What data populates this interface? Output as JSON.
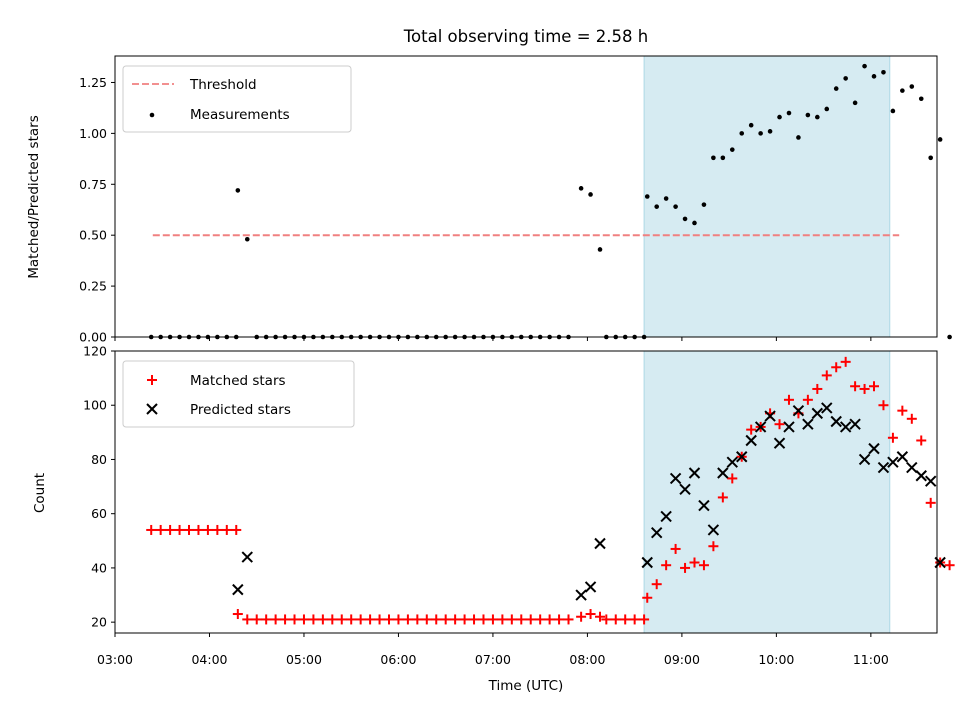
{
  "chart_data": [
    {
      "type": "scatter",
      "title": "Total observing time = 2.58 h",
      "ylabel": "Matched/Predicted stars",
      "ylim": [
        0,
        1.38
      ],
      "yticks": [
        "0.00",
        "0.25",
        "0.50",
        "0.75",
        "1.00",
        "1.25"
      ],
      "ytick_values": [
        0,
        0.25,
        0.5,
        0.75,
        1.0,
        1.25
      ],
      "threshold": {
        "label": "Threshold",
        "value": 0.5,
        "color": "#f08080",
        "x_range": [
          "03:24",
          "11:18"
        ]
      },
      "shaded_span": {
        "from": "08:36",
        "to": "11:12",
        "color": "#add8e6"
      },
      "legend_position": "upper-left",
      "series": [
        {
          "name": "Measurements",
          "color": "#000000",
          "points": [
            [
              "03:23",
              0
            ],
            [
              "03:29",
              0
            ],
            [
              "03:35",
              0
            ],
            [
              "03:41",
              0
            ],
            [
              "03:47",
              0
            ],
            [
              "03:53",
              0
            ],
            [
              "03:59",
              0
            ],
            [
              "04:05",
              0
            ],
            [
              "04:11",
              0
            ],
            [
              "04:17",
              0
            ],
            [
              "04:18",
              0.72
            ],
            [
              "04:24",
              0.48
            ],
            [
              "04:30",
              0
            ],
            [
              "04:36",
              0
            ],
            [
              "04:42",
              0
            ],
            [
              "04:48",
              0
            ],
            [
              "04:54",
              0
            ],
            [
              "05:00",
              0
            ],
            [
              "05:06",
              0
            ],
            [
              "05:12",
              0
            ],
            [
              "05:18",
              0
            ],
            [
              "05:24",
              0
            ],
            [
              "05:30",
              0
            ],
            [
              "05:36",
              0
            ],
            [
              "05:42",
              0
            ],
            [
              "05:48",
              0
            ],
            [
              "05:54",
              0
            ],
            [
              "06:00",
              0
            ],
            [
              "06:06",
              0
            ],
            [
              "06:12",
              0
            ],
            [
              "06:18",
              0
            ],
            [
              "06:24",
              0
            ],
            [
              "06:30",
              0
            ],
            [
              "06:36",
              0
            ],
            [
              "06:42",
              0
            ],
            [
              "06:48",
              0
            ],
            [
              "06:54",
              0
            ],
            [
              "07:00",
              0
            ],
            [
              "07:06",
              0
            ],
            [
              "07:12",
              0
            ],
            [
              "07:18",
              0
            ],
            [
              "07:24",
              0
            ],
            [
              "07:30",
              0
            ],
            [
              "07:36",
              0
            ],
            [
              "07:42",
              0
            ],
            [
              "07:48",
              0
            ],
            [
              "07:56",
              0.73
            ],
            [
              "08:02",
              0.7
            ],
            [
              "08:08",
              0.43
            ],
            [
              "08:12",
              0
            ],
            [
              "08:18",
              0
            ],
            [
              "08:24",
              0
            ],
            [
              "08:30",
              0
            ],
            [
              "08:36",
              0
            ],
            [
              "08:38",
              0.69
            ],
            [
              "08:44",
              0.64
            ],
            [
              "08:50",
              0.68
            ],
            [
              "08:56",
              0.64
            ],
            [
              "09:02",
              0.58
            ],
            [
              "09:08",
              0.56
            ],
            [
              "09:14",
              0.65
            ],
            [
              "09:20",
              0.88
            ],
            [
              "09:26",
              0.88
            ],
            [
              "09:32",
              0.92
            ],
            [
              "09:38",
              1.0
            ],
            [
              "09:44",
              1.04
            ],
            [
              "09:50",
              1.0
            ],
            [
              "09:56",
              1.01
            ],
            [
              "10:02",
              1.08
            ],
            [
              "10:08",
              1.1
            ],
            [
              "10:14",
              0.98
            ],
            [
              "10:20",
              1.09
            ],
            [
              "10:26",
              1.08
            ],
            [
              "10:32",
              1.12
            ],
            [
              "10:38",
              1.22
            ],
            [
              "10:44",
              1.27
            ],
            [
              "10:50",
              1.15
            ],
            [
              "10:56",
              1.33
            ],
            [
              "11:02",
              1.28
            ],
            [
              "11:08",
              1.3
            ],
            [
              "11:14",
              1.11
            ],
            [
              "11:20",
              1.21
            ],
            [
              "11:26",
              1.23
            ],
            [
              "11:32",
              1.17
            ],
            [
              "11:38",
              0.88
            ],
            [
              "11:44",
              0.97
            ],
            [
              "11:50",
              0
            ]
          ]
        }
      ]
    },
    {
      "type": "scatter",
      "xlabel": "Time (UTC)",
      "ylabel": "Count",
      "ylim": [
        16,
        120
      ],
      "yticks": [
        "20",
        "40",
        "60",
        "80",
        "100",
        "120"
      ],
      "ytick_values": [
        20,
        40,
        60,
        80,
        100,
        120
      ],
      "xticks": [
        "03:00",
        "04:00",
        "05:00",
        "06:00",
        "07:00",
        "08:00",
        "09:00",
        "10:00",
        "11:00"
      ],
      "xlim": [
        "03:00",
        "11:42"
      ],
      "shaded_span": {
        "from": "08:36",
        "to": "11:12",
        "color": "#add8e6"
      },
      "legend_position": "upper-left",
      "series": [
        {
          "name": "Matched stars",
          "marker": "plus",
          "color": "#ff0000",
          "points": [
            [
              "03:23",
              54
            ],
            [
              "03:29",
              54
            ],
            [
              "03:35",
              54
            ],
            [
              "03:41",
              54
            ],
            [
              "03:47",
              54
            ],
            [
              "03:53",
              54
            ],
            [
              "03:59",
              54
            ],
            [
              "04:05",
              54
            ],
            [
              "04:11",
              54
            ],
            [
              "04:17",
              54
            ],
            [
              "04:18",
              23
            ],
            [
              "04:24",
              21
            ],
            [
              "04:30",
              21
            ],
            [
              "04:36",
              21
            ],
            [
              "04:42",
              21
            ],
            [
              "04:48",
              21
            ],
            [
              "04:54",
              21
            ],
            [
              "05:00",
              21
            ],
            [
              "05:06",
              21
            ],
            [
              "05:12",
              21
            ],
            [
              "05:18",
              21
            ],
            [
              "05:24",
              21
            ],
            [
              "05:30",
              21
            ],
            [
              "05:36",
              21
            ],
            [
              "05:42",
              21
            ],
            [
              "05:48",
              21
            ],
            [
              "05:54",
              21
            ],
            [
              "06:00",
              21
            ],
            [
              "06:06",
              21
            ],
            [
              "06:12",
              21
            ],
            [
              "06:18",
              21
            ],
            [
              "06:24",
              21
            ],
            [
              "06:30",
              21
            ],
            [
              "06:36",
              21
            ],
            [
              "06:42",
              21
            ],
            [
              "06:48",
              21
            ],
            [
              "06:54",
              21
            ],
            [
              "07:00",
              21
            ],
            [
              "07:06",
              21
            ],
            [
              "07:12",
              21
            ],
            [
              "07:18",
              21
            ],
            [
              "07:24",
              21
            ],
            [
              "07:30",
              21
            ],
            [
              "07:36",
              21
            ],
            [
              "07:42",
              21
            ],
            [
              "07:48",
              21
            ],
            [
              "07:56",
              22
            ],
            [
              "08:02",
              23
            ],
            [
              "08:08",
              22
            ],
            [
              "08:12",
              21
            ],
            [
              "08:18",
              21
            ],
            [
              "08:24",
              21
            ],
            [
              "08:30",
              21
            ],
            [
              "08:36",
              21
            ],
            [
              "08:38",
              29
            ],
            [
              "08:44",
              34
            ],
            [
              "08:50",
              41
            ],
            [
              "08:56",
              47
            ],
            [
              "09:02",
              40
            ],
            [
              "09:08",
              42
            ],
            [
              "09:14",
              41
            ],
            [
              "09:20",
              48
            ],
            [
              "09:26",
              66
            ],
            [
              "09:32",
              73
            ],
            [
              "09:38",
              81
            ],
            [
              "09:44",
              91
            ],
            [
              "09:50",
              92
            ],
            [
              "09:56",
              97
            ],
            [
              "10:02",
              93
            ],
            [
              "10:08",
              102
            ],
            [
              "10:14",
              97
            ],
            [
              "10:20",
              102
            ],
            [
              "10:26",
              106
            ],
            [
              "10:32",
              111
            ],
            [
              "10:38",
              114
            ],
            [
              "10:44",
              116
            ],
            [
              "10:50",
              107
            ],
            [
              "10:56",
              106
            ],
            [
              "11:02",
              107
            ],
            [
              "11:08",
              100
            ],
            [
              "11:14",
              88
            ],
            [
              "11:20",
              98
            ],
            [
              "11:26",
              95
            ],
            [
              "11:32",
              87
            ],
            [
              "11:38",
              64
            ],
            [
              "11:44",
              42
            ],
            [
              "11:50",
              41
            ]
          ]
        },
        {
          "name": "Predicted stars",
          "marker": "x",
          "color": "#000000",
          "points": [
            [
              "04:18",
              32
            ],
            [
              "04:24",
              44
            ],
            [
              "07:56",
              30
            ],
            [
              "08:02",
              33
            ],
            [
              "08:08",
              49
            ],
            [
              "08:38",
              42
            ],
            [
              "08:44",
              53
            ],
            [
              "08:50",
              59
            ],
            [
              "08:56",
              73
            ],
            [
              "09:02",
              69
            ],
            [
              "09:08",
              75
            ],
            [
              "09:14",
              63
            ],
            [
              "09:20",
              54
            ],
            [
              "09:26",
              75
            ],
            [
              "09:32",
              79
            ],
            [
              "09:38",
              81
            ],
            [
              "09:44",
              87
            ],
            [
              "09:50",
              92
            ],
            [
              "09:56",
              96
            ],
            [
              "10:02",
              86
            ],
            [
              "10:08",
              92
            ],
            [
              "10:14",
              98
            ],
            [
              "10:20",
              93
            ],
            [
              "10:26",
              97
            ],
            [
              "10:32",
              99
            ],
            [
              "10:38",
              94
            ],
            [
              "10:44",
              92
            ],
            [
              "10:50",
              93
            ],
            [
              "10:56",
              80
            ],
            [
              "11:02",
              84
            ],
            [
              "11:08",
              77
            ],
            [
              "11:14",
              79
            ],
            [
              "11:20",
              81
            ],
            [
              "11:26",
              77
            ],
            [
              "11:32",
              74
            ],
            [
              "11:38",
              72
            ],
            [
              "11:44",
              42
            ]
          ]
        }
      ]
    }
  ]
}
